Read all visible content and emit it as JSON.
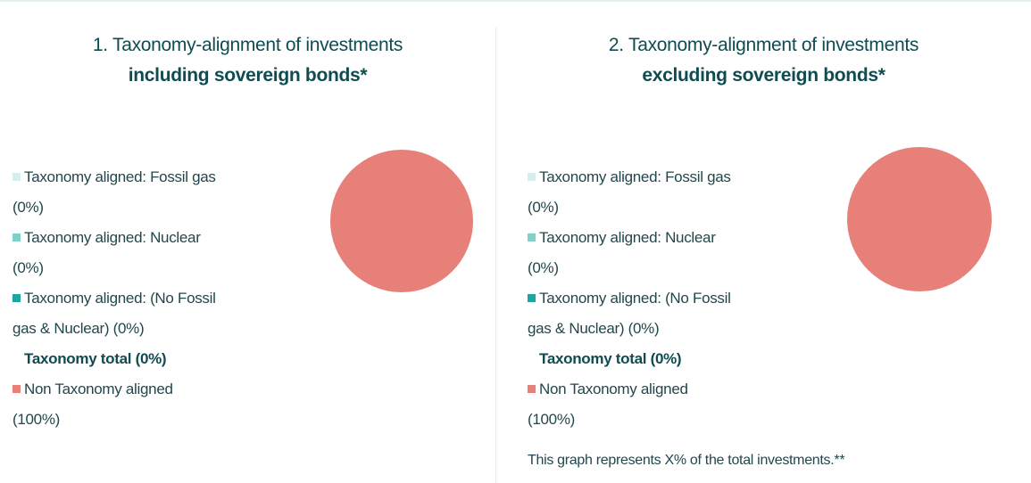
{
  "chart_data": [
    {
      "type": "pie",
      "title": "1. Taxonomy-alignment of investments",
      "subtitle": "including sovereign bonds*",
      "categories": [
        "Taxonomy aligned: Fossil gas (0%)",
        "Taxonomy aligned: Nuclear (0%)",
        "Taxonomy aligned: (No Fossil gas & Nuclear) (0%)",
        "Non Taxonomy aligned (100%)"
      ],
      "values": [
        0,
        0,
        0,
        100
      ],
      "colors": [
        "#d6efee",
        "#7fcfcb",
        "#1ea59f",
        "#e8807a"
      ],
      "total_label": "Taxonomy total (0%)"
    },
    {
      "type": "pie",
      "title": "2. Taxonomy-alignment of investments",
      "subtitle": "excluding sovereign bonds*",
      "categories": [
        "Taxonomy aligned: Fossil gas (0%)",
        "Taxonomy aligned: Nuclear (0%)",
        "Taxonomy aligned: (No Fossil gas & Nuclear) (0%)",
        "Non Taxonomy aligned (100%)"
      ],
      "values": [
        0,
        0,
        0,
        100
      ],
      "colors": [
        "#d6efee",
        "#7fcfcb",
        "#1ea59f",
        "#e8807a"
      ],
      "total_label": "Taxonomy total (0%)",
      "note": "This graph represents X% of the total investments.**"
    }
  ]
}
